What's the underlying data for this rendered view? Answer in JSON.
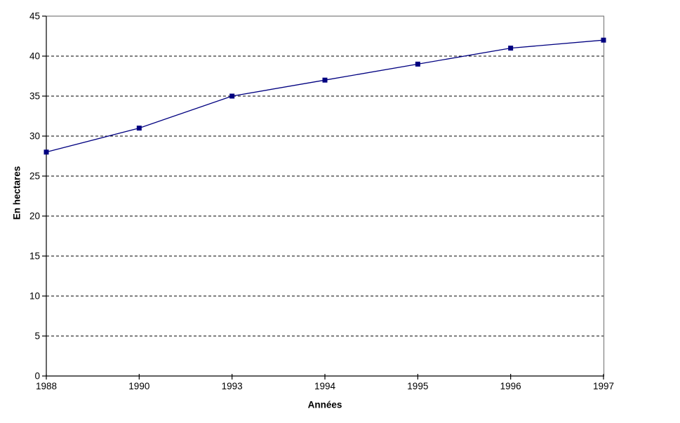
{
  "window": {
    "background_color": "#ffffff"
  },
  "chart_data": {
    "type": "line",
    "title": "",
    "xlabel": "Années",
    "ylabel": "En hectares",
    "categories": [
      "1988",
      "1990",
      "1993",
      "1994",
      "1995",
      "1996",
      "1997"
    ],
    "series": [
      {
        "values": [
          28,
          31,
          35,
          37,
          39,
          41,
          42
        ],
        "color": "#000080",
        "marker": "square"
      }
    ],
    "ylim": [
      0,
      45
    ],
    "yticks": [
      0,
      5,
      10,
      15,
      20,
      25,
      30,
      35,
      40,
      45
    ],
    "grid": {
      "horizontal": true,
      "style": "dashed",
      "color": "#000000"
    },
    "legend_position": "none",
    "axis_color": "#000000",
    "plot_border_color": "#808080",
    "plot_background": "#ffffff"
  }
}
